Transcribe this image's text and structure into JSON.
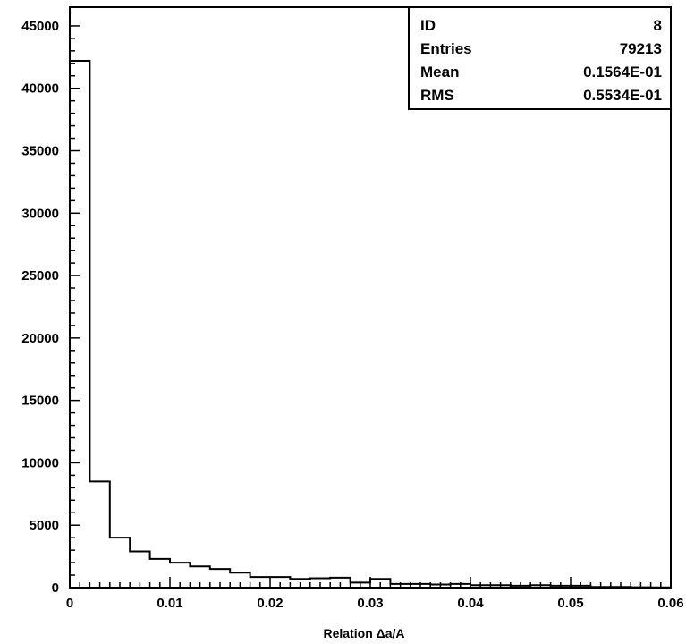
{
  "chart_data": {
    "type": "bar",
    "xlabel": "Relation Δa/A",
    "ylabel": "",
    "xlim": [
      0,
      0.06
    ],
    "ylim": [
      0,
      46500
    ],
    "grid": false,
    "bin_width": 0.002,
    "x_ticks": [
      "0",
      "0.01",
      "0.02",
      "0.03",
      "0.04",
      "0.05",
      "0.06"
    ],
    "y_ticks": [
      "0",
      "5000",
      "10000",
      "15000",
      "20000",
      "25000",
      "30000",
      "35000",
      "40000",
      "45000"
    ],
    "bins": [
      {
        "x_low": 0.0,
        "x_high": 0.002,
        "value": 42200
      },
      {
        "x_low": 0.002,
        "x_high": 0.004,
        "value": 8500
      },
      {
        "x_low": 0.004,
        "x_high": 0.006,
        "value": 4000
      },
      {
        "x_low": 0.006,
        "x_high": 0.008,
        "value": 2900
      },
      {
        "x_low": 0.008,
        "x_high": 0.01,
        "value": 2300
      },
      {
        "x_low": 0.01,
        "x_high": 0.012,
        "value": 2000
      },
      {
        "x_low": 0.012,
        "x_high": 0.014,
        "value": 1700
      },
      {
        "x_low": 0.014,
        "x_high": 0.016,
        "value": 1500
      },
      {
        "x_low": 0.016,
        "x_high": 0.018,
        "value": 1200
      },
      {
        "x_low": 0.018,
        "x_high": 0.02,
        "value": 850
      },
      {
        "x_low": 0.02,
        "x_high": 0.022,
        "value": 850
      },
      {
        "x_low": 0.022,
        "x_high": 0.024,
        "value": 700
      },
      {
        "x_low": 0.024,
        "x_high": 0.026,
        "value": 750
      },
      {
        "x_low": 0.026,
        "x_high": 0.028,
        "value": 800
      },
      {
        "x_low": 0.028,
        "x_high": 0.03,
        "value": 400
      },
      {
        "x_low": 0.03,
        "x_high": 0.032,
        "value": 700
      },
      {
        "x_low": 0.032,
        "x_high": 0.034,
        "value": 300
      },
      {
        "x_low": 0.034,
        "x_high": 0.036,
        "value": 300
      },
      {
        "x_low": 0.036,
        "x_high": 0.038,
        "value": 250
      },
      {
        "x_low": 0.038,
        "x_high": 0.04,
        "value": 300
      },
      {
        "x_low": 0.04,
        "x_high": 0.042,
        "value": 200
      },
      {
        "x_low": 0.042,
        "x_high": 0.044,
        "value": 200
      },
      {
        "x_low": 0.044,
        "x_high": 0.046,
        "value": 150
      },
      {
        "x_low": 0.046,
        "x_high": 0.048,
        "value": 200
      },
      {
        "x_low": 0.048,
        "x_high": 0.05,
        "value": 150
      },
      {
        "x_low": 0.05,
        "x_high": 0.052,
        "value": 150
      },
      {
        "x_low": 0.052,
        "x_high": 0.054,
        "value": 50
      },
      {
        "x_low": 0.054,
        "x_high": 0.056,
        "value": 50
      },
      {
        "x_low": 0.056,
        "x_high": 0.058,
        "value": 30
      },
      {
        "x_low": 0.058,
        "x_high": 0.06,
        "value": 20
      }
    ],
    "stats_box": {
      "placement": "top-right",
      "rows": [
        {
          "label": "ID",
          "value": "8"
        },
        {
          "label": "Entries",
          "value": "79213"
        },
        {
          "label": "Mean",
          "value": "0.1564E-01"
        },
        {
          "label": "RMS",
          "value": "0.5534E-01"
        }
      ]
    }
  },
  "colors": {
    "line": "#000000",
    "background": "#ffffff"
  }
}
